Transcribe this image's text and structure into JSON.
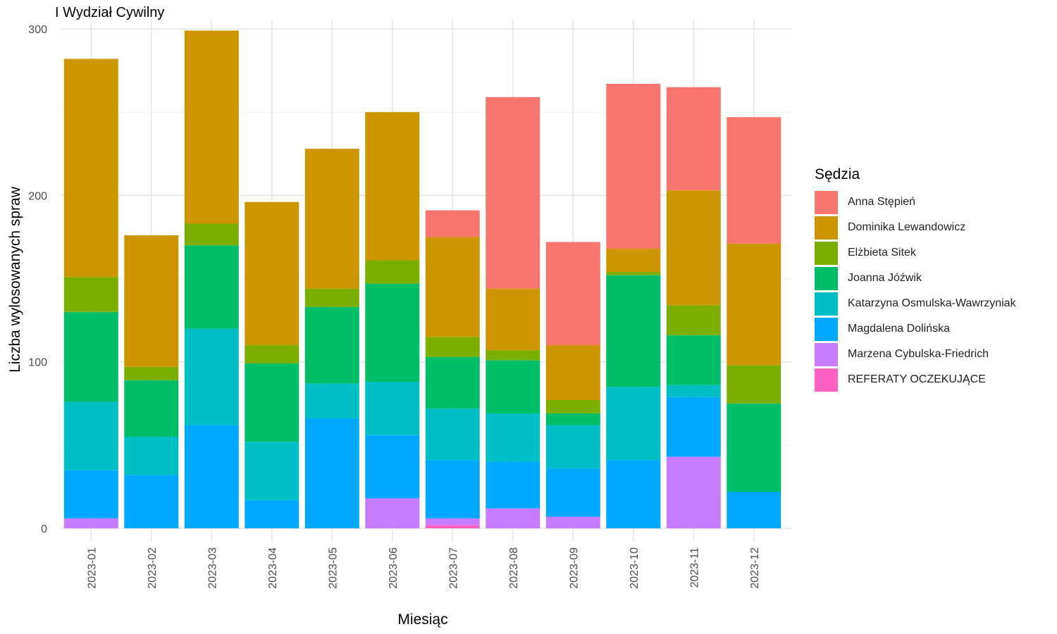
{
  "chart_data": {
    "type": "bar",
    "stacked": true,
    "title": "I Wydział Cywilny",
    "xlabel": "Miesiąc",
    "ylabel": "Liczba wylosowanych spraw",
    "ylim": [
      0,
      300
    ],
    "yticks": [
      0,
      100,
      200,
      300
    ],
    "grid": true,
    "legend_title": "Sędzia",
    "legend_position": "right",
    "categories": [
      "2023-01",
      "2023-02",
      "2023-03",
      "2023-04",
      "2023-05",
      "2023-06",
      "2023-07",
      "2023-08",
      "2023-09",
      "2023-10",
      "2023-11",
      "2023-12"
    ],
    "series": [
      {
        "name": "REFERATY OCZEKUJĄCE",
        "color": "#FF61C3",
        "values": [
          0,
          0,
          0,
          0,
          0,
          0,
          2,
          0,
          0,
          0,
          0,
          0
        ]
      },
      {
        "name": "Marzena Cybulska-Friedrich",
        "color": "#C77CFF",
        "values": [
          6,
          0,
          0,
          0,
          0,
          18,
          4,
          12,
          7,
          0,
          43,
          0
        ]
      },
      {
        "name": "Magdalena Dolińska",
        "color": "#00A9FF",
        "values": [
          29,
          32,
          62,
          17,
          66,
          38,
          35,
          28,
          29,
          41,
          36,
          22
        ]
      },
      {
        "name": "Katarzyna Osmulska-Wawrzyniak",
        "color": "#00BFC4",
        "values": [
          41,
          23,
          58,
          35,
          21,
          32,
          31,
          29,
          26,
          44,
          7,
          0
        ]
      },
      {
        "name": "Joanna Jóźwik",
        "color": "#00BE67",
        "values": [
          54,
          34,
          50,
          47,
          46,
          59,
          31,
          32,
          7,
          67,
          30,
          53
        ]
      },
      {
        "name": "Elżbieta Sitek",
        "color": "#7CAE00",
        "values": [
          21,
          8,
          13,
          11,
          11,
          14,
          12,
          6,
          8,
          2,
          18,
          23
        ]
      },
      {
        "name": "Dominika Lewandowicz",
        "color": "#CD9600",
        "values": [
          131,
          79,
          116,
          86,
          84,
          89,
          60,
          37,
          33,
          14,
          69,
          73
        ]
      },
      {
        "name": "Anna Stępień",
        "color": "#F8766D",
        "values": [
          0,
          0,
          0,
          0,
          0,
          0,
          16,
          115,
          62,
          99,
          62,
          76
        ]
      }
    ]
  }
}
